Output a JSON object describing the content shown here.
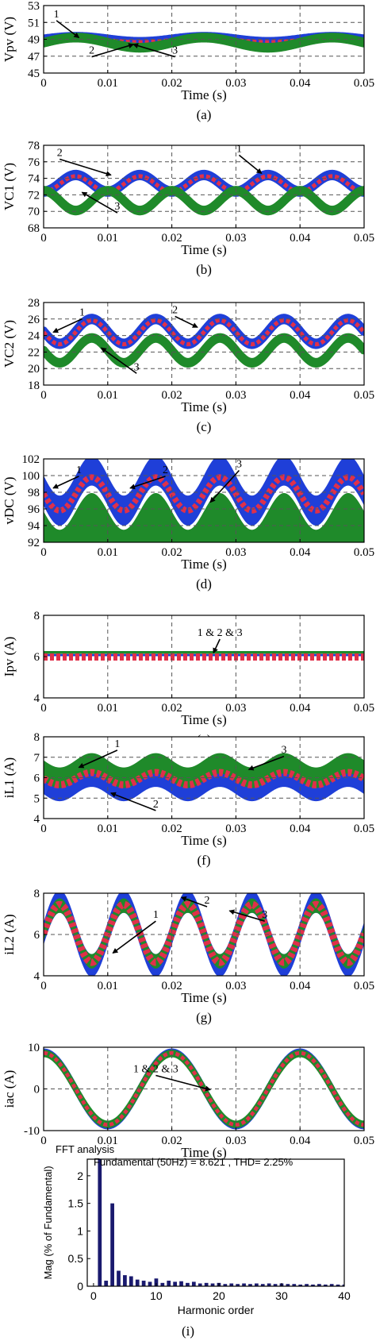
{
  "chart_data": [
    {
      "type": "line",
      "caption": "(a)",
      "ylabel": "Vpv (V)",
      "xlabel": "Time (s)",
      "xlim": [
        0,
        0.05
      ],
      "ylim": [
        45,
        53
      ],
      "xticks": [
        "0",
        "0.01",
        "0.02",
        "0.03",
        "0.04",
        "0.05"
      ],
      "yticks": [
        "45",
        "47",
        "49",
        "51",
        "53"
      ],
      "grid": "dashed",
      "series": [
        {
          "color": "#1f3fd8",
          "width": 0.5,
          "form": "sine",
          "offset": 49.0,
          "amp": 0.3,
          "period": 0.02,
          "phase": 0.005,
          "ripple": 0.15
        },
        {
          "color": "#e0304a",
          "width": 0.25,
          "dashed": true,
          "form": "sine",
          "offset": 48.9,
          "amp": 0.25,
          "period": 0.02,
          "phase": 0.005,
          "ripple": 0
        },
        {
          "color": "#1f8a2a",
          "width": 0.45,
          "form": "sine",
          "offset": 48.6,
          "amp": 0.6,
          "period": 0.02,
          "phase": 0.005,
          "ripple": 0.15
        }
      ],
      "annotations": [
        {
          "text": "1",
          "tx": 0.002,
          "ty": 51.6,
          "ax": 0.0055,
          "ay": 49.2
        },
        {
          "text": "2",
          "tx": 0.0075,
          "ty": 47.3,
          "ax": 0.014,
          "ay": 48.4
        },
        {
          "text": "3",
          "tx": 0.0205,
          "ty": 47.3,
          "ax": 0.014,
          "ay": 48.4
        }
      ]
    },
    {
      "type": "line",
      "caption": "(b)",
      "ylabel": "VC1 (V)",
      "xlabel": "Time (s)",
      "xlim": [
        0,
        0.05
      ],
      "ylim": [
        68,
        78
      ],
      "xticks": [
        "0",
        "0.01",
        "0.02",
        "0.03",
        "0.04",
        "0.05"
      ],
      "yticks": [
        "68",
        "70",
        "72",
        "74",
        "76",
        "78"
      ],
      "grid": "dashed",
      "series": [
        {
          "color": "#1f3fd8",
          "width": 0.45,
          "form": "sine",
          "offset": 73.4,
          "amp": 1.0,
          "period": 0.01,
          "phase": 0.005,
          "ripple": 0.2
        },
        {
          "color": "#e0304a",
          "width": 0.25,
          "dashed": true,
          "form": "sine",
          "offset": 73.3,
          "amp": 0.95,
          "period": 0.01,
          "phase": 0.005,
          "ripple": 0
        },
        {
          "color": "#1f8a2a",
          "width": 0.45,
          "form": "sine",
          "offset": 71.3,
          "amp": 1.2,
          "period": 0.01,
          "phase": 0.01,
          "ripple": 0.15
        }
      ],
      "annotations": [
        {
          "text": "2",
          "tx": 0.0025,
          "ty": 76.7,
          "ax": 0.0105,
          "ay": 74.4
        },
        {
          "text": "3",
          "tx": 0.0115,
          "ty": 70.2,
          "ax": 0.006,
          "ay": 72.3
        },
        {
          "text": "1",
          "tx": 0.0305,
          "ty": 77.2,
          "ax": 0.034,
          "ay": 74.6
        }
      ]
    },
    {
      "type": "line",
      "caption": "(c)",
      "ylabel": "VC2 (V)",
      "xlabel": "Time (s)",
      "xlim": [
        0,
        0.05
      ],
      "ylim": [
        18,
        28
      ],
      "xticks": [
        "0",
        "0.01",
        "0.02",
        "0.03",
        "0.04",
        "0.05"
      ],
      "yticks": [
        "18",
        "20",
        "22",
        "24",
        "26",
        "28"
      ],
      "grid": "dashed",
      "series": [
        {
          "color": "#1f3fd8",
          "width": 0.45,
          "form": "sine",
          "offset": 24.5,
          "amp": 1.5,
          "period": 0.01,
          "phase": 0.0075,
          "ripple": 0.2
        },
        {
          "color": "#e0304a",
          "width": 0.25,
          "dashed": true,
          "form": "sine",
          "offset": 24.4,
          "amp": 1.45,
          "period": 0.01,
          "phase": 0.0075,
          "ripple": 0
        },
        {
          "color": "#1f8a2a",
          "width": 0.45,
          "form": "sine",
          "offset": 22.2,
          "amp": 1.5,
          "period": 0.01,
          "phase": 0.0075,
          "ripple": 0.15
        }
      ],
      "annotations": [
        {
          "text": "1",
          "tx": 0.006,
          "ty": 26.4,
          "ax": 0.0015,
          "ay": 24.4
        },
        {
          "text": "2",
          "tx": 0.0205,
          "ty": 26.7,
          "ax": 0.024,
          "ay": 25.0
        },
        {
          "text": "3",
          "tx": 0.0145,
          "ty": 19.8,
          "ax": 0.009,
          "ay": 22.5
        }
      ]
    },
    {
      "type": "line",
      "caption": "(d)",
      "ylabel": "vDC (V)",
      "xlabel": "Time (s)",
      "xlim": [
        0,
        0.05
      ],
      "ylim": [
        92,
        102
      ],
      "xticks": [
        "0",
        "0.01",
        "0.02",
        "0.03",
        "0.04",
        "0.05"
      ],
      "yticks": [
        "92",
        "94",
        "96",
        "98",
        "100",
        "102"
      ],
      "grid": "dashed",
      "series": [
        {
          "color": "#1f3fd8",
          "form": "band",
          "center": 98.2,
          "amp": 2.4,
          "halfwidth": 1.8,
          "period": 0.01,
          "phase": 0.0075
        },
        {
          "color": "#1f8a2a",
          "form": "fill",
          "top_center": 95.7,
          "amp": 2.2,
          "period": 0.01,
          "phase": 0.0075
        },
        {
          "color": "#e0304a",
          "width": 0.35,
          "dashed": true,
          "form": "sine",
          "offset": 97.8,
          "amp": 2.0,
          "period": 0.01,
          "phase": 0.0075,
          "ripple": 0
        }
      ],
      "annotations": [
        {
          "text": "1",
          "tx": 0.0055,
          "ty": 100.3,
          "ax": 0.0015,
          "ay": 98.5
        },
        {
          "text": "2",
          "tx": 0.019,
          "ty": 100.3,
          "ax": 0.0135,
          "ay": 98.5
        },
        {
          "text": "3",
          "tx": 0.0305,
          "ty": 101.0,
          "ax": 0.026,
          "ay": 96.8
        }
      ]
    },
    {
      "type": "line",
      "caption": "(e)",
      "ylabel": "Ipv (A)",
      "xlabel": "Time (s)",
      "xlim": [
        0,
        0.05
      ],
      "ylim": [
        4,
        8
      ],
      "xticks": [
        "0",
        "0.01",
        "0.02",
        "0.03",
        "0.04",
        "0.05"
      ],
      "yticks": [
        "4",
        "6",
        "8"
      ],
      "grid": "dashed-x",
      "series": [
        {
          "color": "#1f8a2a",
          "form": "band",
          "center": 6.2,
          "amp": 0,
          "halfwidth": 0.07,
          "period": 0.01,
          "phase": 0
        },
        {
          "color": "#1f3fd8",
          "form": "band",
          "center": 6.07,
          "amp": 0,
          "halfwidth": 0.05,
          "period": 0.01,
          "phase": 0
        },
        {
          "color": "#e0304a",
          "width": 0.3,
          "dashed": true,
          "form": "sine",
          "offset": 5.98,
          "amp": 0,
          "period": 0.01,
          "phase": 0,
          "ripple": 0
        }
      ],
      "annotations": [
        {
          "text": "1 & 2 & 3",
          "tx": 0.0275,
          "ty": 7.0,
          "ax": 0.0265,
          "ay": 6.18
        }
      ]
    },
    {
      "type": "line",
      "caption": "(f)",
      "ylabel": "iL1 (A)",
      "xlabel": "Time (s)",
      "xlim": [
        0,
        0.05
      ],
      "ylim": [
        4,
        8
      ],
      "xticks": [
        "0",
        "0.01",
        "0.02",
        "0.03",
        "0.04",
        "0.05"
      ],
      "yticks": [
        "4",
        "5",
        "6",
        "7",
        "8"
      ],
      "grid": "dashed",
      "series": [
        {
          "color": "#1f3fd8",
          "form": "band",
          "center": 5.75,
          "amp": 0.35,
          "halfwidth": 0.55,
          "period": 0.01,
          "phase": 0.0075
        },
        {
          "color": "#1f8a2a",
          "form": "band",
          "center": 6.35,
          "amp": 0.35,
          "halfwidth": 0.5,
          "period": 0.01,
          "phase": 0.0075
        },
        {
          "color": "#e0304a",
          "width": 0.2,
          "dashed": true,
          "form": "sine",
          "offset": 5.95,
          "amp": 0.3,
          "period": 0.01,
          "phase": 0.0075,
          "ripple": 0
        }
      ],
      "annotations": [
        {
          "text": "1",
          "tx": 0.0115,
          "ty": 7.5,
          "ax": 0.0055,
          "ay": 6.5
        },
        {
          "text": "3",
          "tx": 0.0375,
          "ty": 7.2,
          "ax": 0.032,
          "ay": 6.4
        },
        {
          "text": "2",
          "tx": 0.0175,
          "ty": 4.55,
          "ax": 0.0105,
          "ay": 5.25
        }
      ]
    },
    {
      "type": "line",
      "caption": "(g)",
      "ylabel": "iL2 (A)",
      "xlabel": "Time (s)",
      "xlim": [
        0,
        0.05
      ],
      "ylim": [
        4,
        8
      ],
      "xticks": [
        "0",
        "0.01",
        "0.02",
        "0.03",
        "0.04",
        "0.05"
      ],
      "yticks": [
        "4",
        "6",
        "8"
      ],
      "grid": "dashed",
      "series": [
        {
          "color": "#1f3fd8",
          "form": "band",
          "center": 6.05,
          "amp": 1.55,
          "halfwidth": 0.55,
          "period": 0.01,
          "phase": 0.0025
        },
        {
          "color": "#1f8a2a",
          "form": "band",
          "center": 6.05,
          "amp": 1.35,
          "halfwidth": 0.35,
          "period": 0.01,
          "phase": 0.0025
        },
        {
          "color": "#e0304a",
          "width": 0.3,
          "dashed": true,
          "form": "sine",
          "offset": 6.05,
          "amp": 1.4,
          "period": 0.01,
          "phase": 0.0025,
          "ripple": 0
        }
      ],
      "annotations": [
        {
          "text": "1",
          "tx": 0.0175,
          "ty": 6.8,
          "ax": 0.0108,
          "ay": 5.1
        },
        {
          "text": "2",
          "tx": 0.0255,
          "ty": 7.5,
          "ax": 0.0215,
          "ay": 7.8
        },
        {
          "text": "3",
          "tx": 0.0345,
          "ty": 6.8,
          "ax": 0.029,
          "ay": 7.15
        }
      ]
    },
    {
      "type": "line",
      "caption": "(h)",
      "ylabel": "iac (A)",
      "xlabel": "Time (s)",
      "xlim": [
        0,
        0.05
      ],
      "ylim": [
        -10,
        10
      ],
      "xticks": [
        "0",
        "0.01",
        "0.02",
        "0.03",
        "0.04",
        "0.05"
      ],
      "yticks": [
        "-10",
        "0",
        "10"
      ],
      "grid": "dashed",
      "series": [
        {
          "color": "#1f3fd8",
          "width": 0.6,
          "form": "sine",
          "offset": 0,
          "amp": 8.8,
          "period": 0.02,
          "phase": 0,
          "ripple": 0.3
        },
        {
          "color": "#1f8a2a",
          "width": 0.6,
          "form": "sine",
          "offset": 0,
          "amp": 8.5,
          "period": 0.02,
          "phase": 0,
          "ripple": 0.3
        },
        {
          "color": "#e0304a",
          "width": 0.45,
          "dashed": true,
          "form": "sine",
          "offset": 0,
          "amp": 8.6,
          "period": 0.02,
          "phase": 0,
          "ripple": 0
        }
      ],
      "annotations": [
        {
          "text": "1 & 2 & 3",
          "tx": 0.0175,
          "ty": 4.0,
          "ax": 0.026,
          "ay": -0.2
        }
      ]
    },
    {
      "type": "bar",
      "caption": "(i)",
      "tag": "FFT analysis",
      "note": "Fundamental (50Hz) = 8.621 , THD= 2.25%",
      "ylabel": "Mag (% of Fundamental)",
      "xlabel": "Harmonic order",
      "xlim": [
        -1,
        40
      ],
      "ylim": [
        0,
        2.3
      ],
      "xticks": [
        "0",
        "10",
        "20",
        "30",
        "40"
      ],
      "yticks": [
        "0",
        "0.5",
        "1",
        "1.5",
        "2"
      ],
      "x": [
        0,
        1,
        2,
        3,
        4,
        5,
        6,
        7,
        8,
        9,
        10,
        11,
        12,
        13,
        14,
        15,
        16,
        17,
        18,
        19,
        20,
        21,
        22,
        23,
        24,
        25,
        26,
        27,
        28,
        29,
        30,
        31,
        32,
        33,
        34,
        35,
        36,
        37,
        38,
        39,
        40
      ],
      "values": [
        0,
        2.3,
        0.1,
        1.5,
        0.28,
        0.2,
        0.18,
        0.12,
        0.1,
        0.08,
        0.14,
        0.06,
        0.1,
        0.08,
        0.09,
        0.06,
        0.08,
        0.05,
        0.06,
        0.05,
        0.06,
        0.04,
        0.05,
        0.04,
        0.05,
        0.04,
        0.05,
        0.04,
        0.05,
        0.04,
        0.05,
        0.04,
        0.04,
        0.03,
        0.04,
        0.03,
        0.04,
        0.03,
        0.04,
        0.03,
        0.03
      ],
      "bar_color": "#1a1a6e"
    }
  ]
}
